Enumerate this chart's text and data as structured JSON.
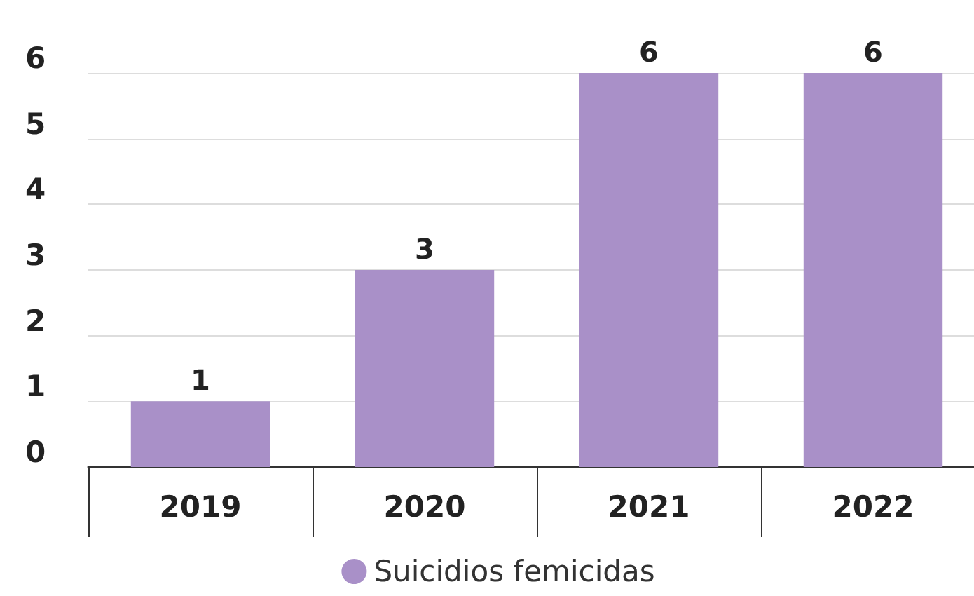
{
  "chart_data": {
    "type": "bar",
    "categories": [
      "2019",
      "2020",
      "2021",
      "2022"
    ],
    "series": [
      {
        "name": "Suicidios femicidas",
        "color": "#a990c8",
        "values": [
          1,
          3,
          6,
          6
        ]
      }
    ],
    "ylim": [
      0,
      6
    ],
    "yticks": [
      0,
      1,
      2,
      3,
      4,
      5,
      6
    ],
    "grid": "y",
    "data_labels": true,
    "legend": "bottom"
  }
}
